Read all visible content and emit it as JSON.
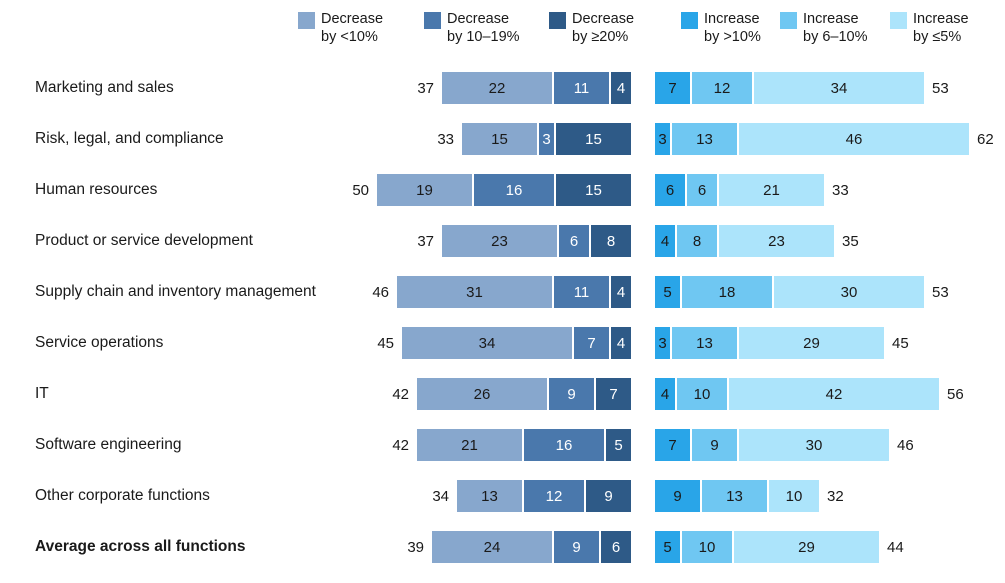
{
  "page": {
    "background": "#ffffff"
  },
  "legend": {
    "position": "top",
    "items": [
      {
        "id": "decrease-lt10",
        "line1": "Decrease",
        "line2": "by <10%",
        "color": "#87A7CD"
      },
      {
        "id": "decrease-10-19",
        "line1": "Decrease",
        "line2": "by 10–19%",
        "color": "#4A78AC"
      },
      {
        "id": "decrease-ge20",
        "line1": "Decrease",
        "line2": "by ≥20%",
        "color": "#2E5A87"
      },
      {
        "id": "increase-gt10",
        "line1": "Increase",
        "line2": "by >10%",
        "color": "#29A5E8"
      },
      {
        "id": "increase-6-10",
        "line1": "Increase",
        "line2": "by 6–10%",
        "color": "#6FC7F2"
      },
      {
        "id": "increase-le5",
        "line1": "Increase",
        "line2": "by ≤5%",
        "color": "#ACE4FB"
      }
    ]
  },
  "chart_data": {
    "type": "bar",
    "subtype": "diverging-stacked-horizontal",
    "unit": "percent",
    "grid": false,
    "legend_position": "top",
    "categories": [
      "Marketing and sales",
      "Risk, legal, and compliance",
      "Human resources",
      "Product or service development",
      "Supply chain and inventory management",
      "Service operations",
      "IT",
      "Software engineering",
      "Other corporate functions",
      "Average across all functions"
    ],
    "emphasized_category": "Average across all functions",
    "series": [
      {
        "name": "Decrease by <10%",
        "side": "decrease",
        "color": "#87A7CD",
        "text_color": "#1a1a1a",
        "values": [
          22,
          15,
          19,
          23,
          31,
          34,
          26,
          21,
          13,
          24
        ]
      },
      {
        "name": "Decrease by 10–19%",
        "side": "decrease",
        "color": "#4A78AC",
        "text_color": "#ffffff",
        "values": [
          11,
          3,
          16,
          6,
          11,
          7,
          9,
          16,
          12,
          9
        ]
      },
      {
        "name": "Decrease by ≥20%",
        "side": "decrease",
        "color": "#2E5A87",
        "text_color": "#ffffff",
        "values": [
          4,
          15,
          15,
          8,
          4,
          4,
          7,
          5,
          9,
          6
        ]
      },
      {
        "name": "Increase by >10%",
        "side": "increase",
        "color": "#29A5E8",
        "text_color": "#1a1a1a",
        "values": [
          7,
          3,
          6,
          4,
          5,
          3,
          4,
          7,
          9,
          5
        ]
      },
      {
        "name": "Increase by 6–10%",
        "side": "increase",
        "color": "#6FC7F2",
        "text_color": "#1a1a1a",
        "values": [
          12,
          13,
          6,
          8,
          18,
          13,
          10,
          9,
          13,
          10
        ]
      },
      {
        "name": "Increase by ≤5%",
        "side": "increase",
        "color": "#ACE4FB",
        "text_color": "#1a1a1a",
        "values": [
          34,
          46,
          21,
          23,
          30,
          29,
          42,
          30,
          10,
          29
        ]
      }
    ],
    "decrease_totals": [
      37,
      33,
      50,
      37,
      46,
      45,
      42,
      42,
      34,
      39
    ],
    "increase_totals": [
      53,
      62,
      33,
      35,
      53,
      45,
      56,
      46,
      32,
      44
    ]
  }
}
